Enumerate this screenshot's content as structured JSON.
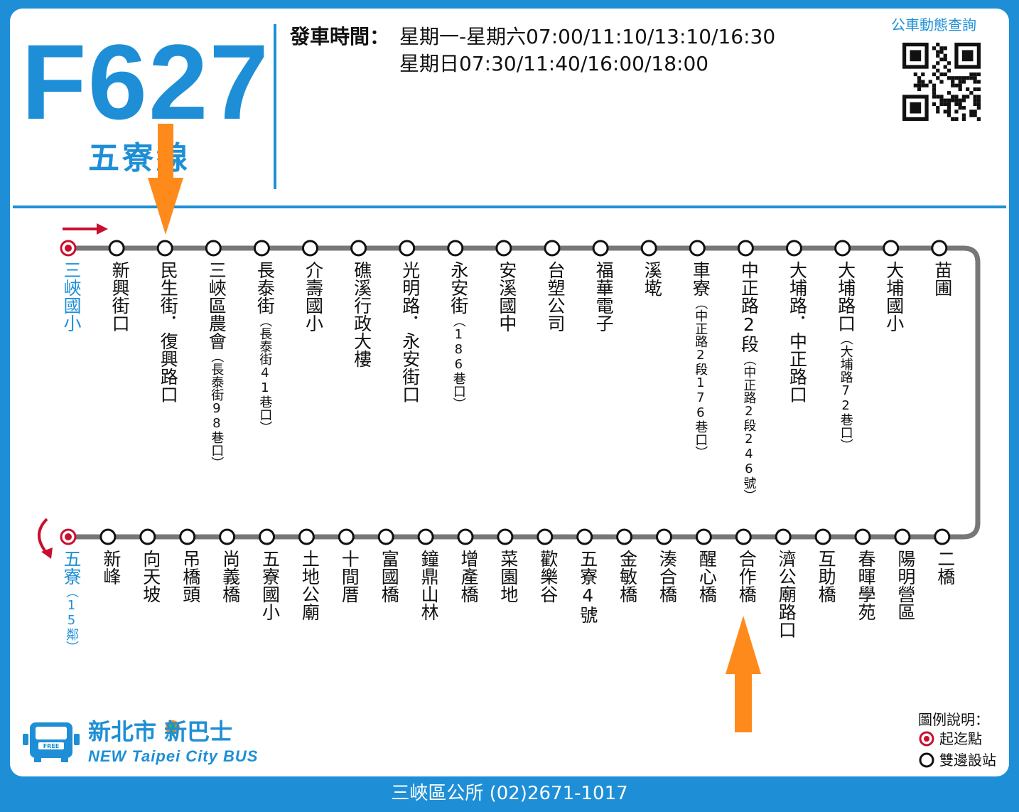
{
  "header": {
    "route_number": "F627",
    "route_name": "五寮線",
    "schedule_label": "發車時間：",
    "schedule_weekday": "星期一-星期六07:00/11:10/13:10/16:30",
    "schedule_sunday": "星期日07:30/11:40/16:00/18:00",
    "live_query": "公車動態查詢"
  },
  "colors": {
    "brand_blue": "#1e8fd6",
    "terminal_red": "#c8102e",
    "highlight_orange": "#ff8a1c",
    "line_gray": "#777777"
  },
  "route": {
    "top_row": [
      {
        "name": "三峽國小",
        "note": "",
        "terminal": true
      },
      {
        "name": "新興街口",
        "note": ""
      },
      {
        "name": "民生街．復興路口",
        "note": ""
      },
      {
        "name": "三峽區農會",
        "note": "（長泰街98巷口）"
      },
      {
        "name": "長泰街",
        "note": "（長泰街41巷口）"
      },
      {
        "name": "介壽國小",
        "note": ""
      },
      {
        "name": "礁溪行政大樓",
        "note": ""
      },
      {
        "name": "光明路．永安街口",
        "note": ""
      },
      {
        "name": "永安街",
        "note": "（186巷口）"
      },
      {
        "name": "安溪國中",
        "note": ""
      },
      {
        "name": "台塑公司",
        "note": ""
      },
      {
        "name": "福華電子",
        "note": ""
      },
      {
        "name": "溪墘",
        "note": ""
      },
      {
        "name": "車寮",
        "note": "（中正路2段176巷口）"
      },
      {
        "name": "中正路2段",
        "note": "（中正路2段246號）"
      },
      {
        "name": "大埔路．中正路口",
        "note": ""
      },
      {
        "name": "大埔路口",
        "note": "（大埔路72巷口）"
      },
      {
        "name": "大埔國小",
        "note": ""
      },
      {
        "name": "苗圃",
        "note": ""
      }
    ],
    "bottom_row": [
      {
        "name": "五寮",
        "note": "（15鄰）",
        "terminal": true
      },
      {
        "name": "新峰",
        "note": ""
      },
      {
        "name": "向天坡",
        "note": ""
      },
      {
        "name": "吊橋頭",
        "note": ""
      },
      {
        "name": "尚義橋",
        "note": ""
      },
      {
        "name": "五寮國小",
        "note": ""
      },
      {
        "name": "土地公廟",
        "note": ""
      },
      {
        "name": "十間厝",
        "note": ""
      },
      {
        "name": "富國橋",
        "note": ""
      },
      {
        "name": "鐘鼎山林",
        "note": ""
      },
      {
        "name": "增產橋",
        "note": ""
      },
      {
        "name": "菜園地",
        "note": ""
      },
      {
        "name": "歡樂谷",
        "note": ""
      },
      {
        "name": "五寮4號",
        "note": ""
      },
      {
        "name": "金敏橋",
        "note": ""
      },
      {
        "name": "湊合橋",
        "note": ""
      },
      {
        "name": "醒心橋",
        "note": ""
      },
      {
        "name": "合作橋",
        "note": ""
      },
      {
        "name": "濟公廟路口",
        "note": ""
      },
      {
        "name": "互助橋",
        "note": ""
      },
      {
        "name": "春暉學苑",
        "note": ""
      },
      {
        "name": "陽明營區",
        "note": ""
      },
      {
        "name": "二橋",
        "note": ""
      }
    ]
  },
  "logo": {
    "zh_text": "新北市 新巴士",
    "en_text": "NEW Taipei City BUS",
    "badge_text": "FREE"
  },
  "legend": {
    "title": "圖例說明：",
    "terminal_label": "起迄點",
    "stop_label": "雙邊設站"
  },
  "footer": {
    "text": "三峽區公所 (02)2671-1017"
  }
}
